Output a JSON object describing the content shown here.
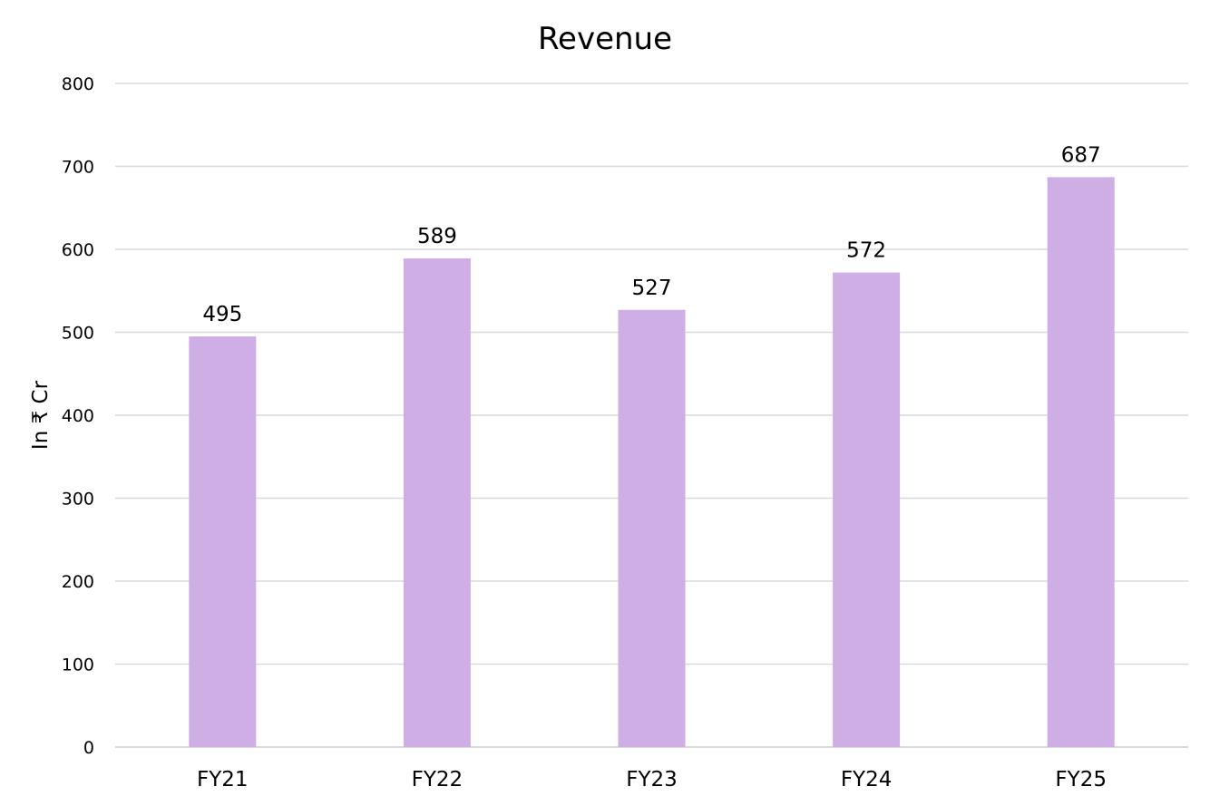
{
  "chart_data": {
    "type": "bar",
    "title": "Revenue",
    "xlabel": "",
    "ylabel": "In ₹ Cr",
    "categories": [
      "FY21",
      "FY22",
      "FY23",
      "FY24",
      "FY25"
    ],
    "values": [
      495,
      589,
      527,
      572,
      687
    ],
    "ylim": [
      0,
      800
    ],
    "yticks": [
      0,
      100,
      200,
      300,
      400,
      500,
      600,
      700,
      800
    ],
    "data_labels": [
      "495",
      "589",
      "527",
      "572",
      "687"
    ],
    "grid": true,
    "legend": "none",
    "bar_color": "#cfaee6"
  }
}
